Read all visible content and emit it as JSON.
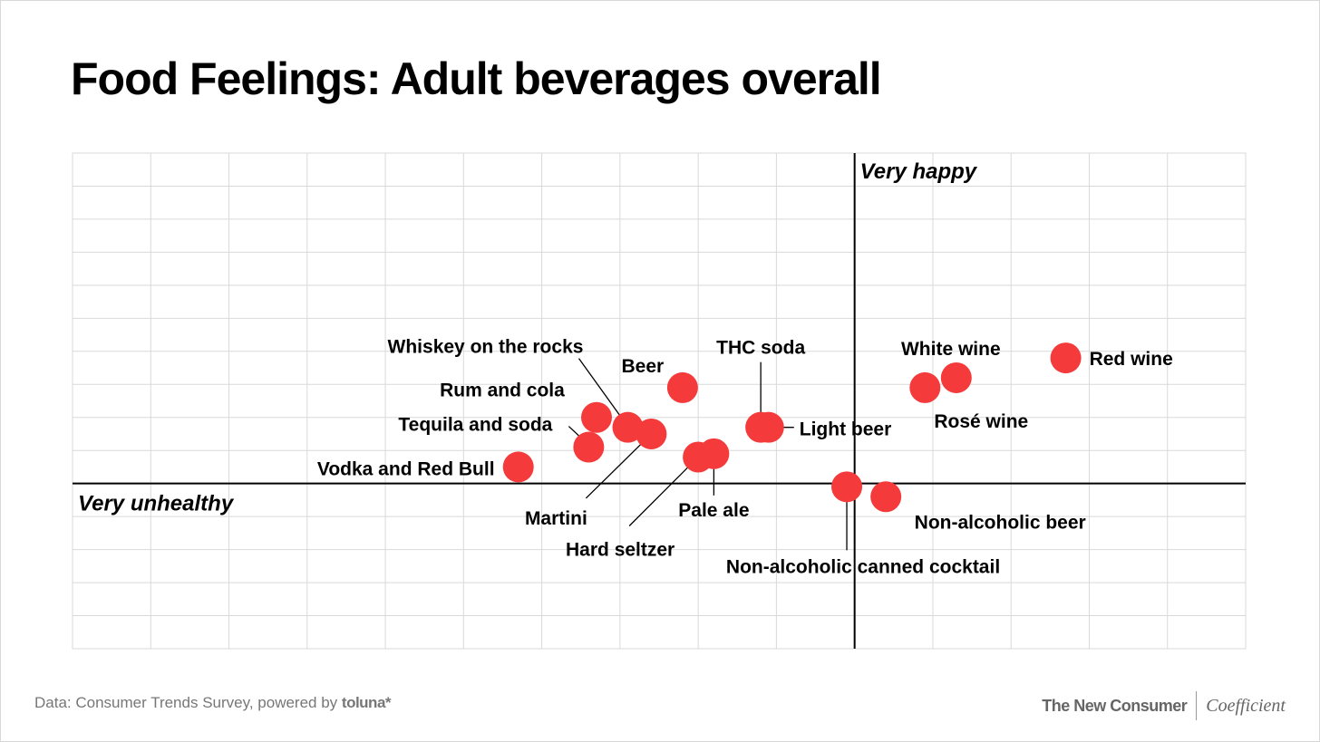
{
  "title": "Food Feelings: Adult beverages overall",
  "chart_data": {
    "type": "scatter",
    "title": "Food Feelings: Adult beverages overall",
    "axis_labels": {
      "y_positive": "Very happy",
      "x_negative": "Very unhealthy"
    },
    "xlim": [
      -10,
      5
    ],
    "ylim": [
      -5,
      10
    ],
    "grid": true,
    "marker_color": "#f43a3a",
    "points": [
      {
        "label": "Red wine",
        "x": 2.7,
        "y": 3.8
      },
      {
        "label": "White wine",
        "x": 1.3,
        "y": 3.2
      },
      {
        "label": "Rosé wine",
        "x": 0.9,
        "y": 2.9
      },
      {
        "label": "Non-alcoholic beer",
        "x": 0.4,
        "y": -0.4
      },
      {
        "label": "Non-alcoholic canned cocktail",
        "x": -0.1,
        "y": -0.1
      },
      {
        "label": "Light beer",
        "x": -1.1,
        "y": 1.7
      },
      {
        "label": "THC soda",
        "x": -1.2,
        "y": 1.7
      },
      {
        "label": "Beer",
        "x": -2.2,
        "y": 2.9
      },
      {
        "label": "Pale ale",
        "x": -1.8,
        "y": 0.9
      },
      {
        "label": "Hard seltzer",
        "x": -2.0,
        "y": 0.8
      },
      {
        "label": "Martini",
        "x": -2.6,
        "y": 1.5
      },
      {
        "label": "Whiskey on the rocks",
        "x": -2.9,
        "y": 1.7
      },
      {
        "label": "Rum and cola",
        "x": -3.3,
        "y": 2.0
      },
      {
        "label": "Tequila and soda",
        "x": -3.4,
        "y": 1.1
      },
      {
        "label": "Vodka and Red Bull",
        "x": -4.3,
        "y": 0.5
      }
    ]
  },
  "footer": {
    "source_text": "Data: Consumer Trends Survey, powered by ",
    "source_brand": "toluna*",
    "partner_a": "The New Consumer",
    "partner_b": "Coefficient"
  }
}
